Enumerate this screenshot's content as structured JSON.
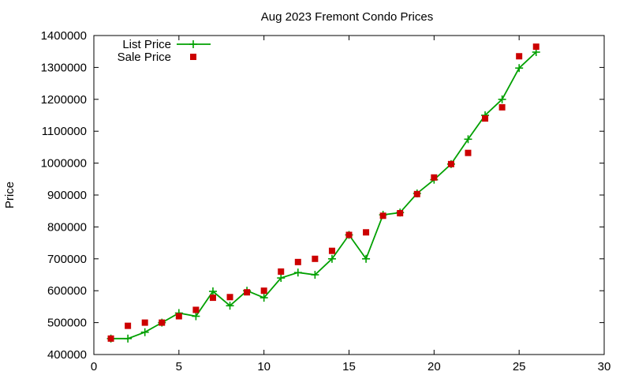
{
  "chart_data": {
    "type": "line",
    "title": "Aug 2023 Fremont Condo Prices",
    "xlabel": "",
    "ylabel": "Price",
    "xlim": [
      0,
      30
    ],
    "ylim": [
      400000,
      1400000
    ],
    "xticks": [
      0,
      5,
      10,
      15,
      20,
      25,
      30
    ],
    "yticks": [
      400000,
      500000,
      600000,
      700000,
      800000,
      900000,
      1000000,
      1100000,
      1200000,
      1300000,
      1400000
    ],
    "grid": false,
    "legend_position": "top-left",
    "series": [
      {
        "name": "List Price",
        "style": "line-plus",
        "color": "#00a000",
        "x": [
          1,
          2,
          3,
          4,
          5,
          6,
          7,
          8,
          9,
          10,
          11,
          12,
          13,
          14,
          15,
          16,
          17,
          18,
          19,
          20,
          21,
          22,
          23,
          24,
          25,
          26
        ],
        "y": [
          450000,
          450000,
          470000,
          500000,
          530000,
          520000,
          598000,
          553000,
          600000,
          578000,
          640000,
          657000,
          650000,
          700000,
          775000,
          700000,
          838000,
          845000,
          905000,
          948000,
          997000,
          1075000,
          1150000,
          1200000,
          1298000,
          1348000
        ]
      },
      {
        "name": "Sale Price",
        "style": "square",
        "color": "#cc0000",
        "x": [
          1,
          2,
          3,
          4,
          5,
          6,
          7,
          8,
          9,
          10,
          11,
          12,
          13,
          14,
          15,
          16,
          17,
          18,
          19,
          20,
          21,
          22,
          23,
          24,
          25,
          26
        ],
        "y": [
          450000,
          490000,
          500000,
          500000,
          520000,
          540000,
          578000,
          580000,
          595000,
          600000,
          660000,
          690000,
          700000,
          725000,
          775000,
          783000,
          835000,
          843000,
          903000,
          955000,
          997000,
          1032000,
          1140000,
          1175000,
          1335000,
          1365000
        ]
      }
    ]
  }
}
